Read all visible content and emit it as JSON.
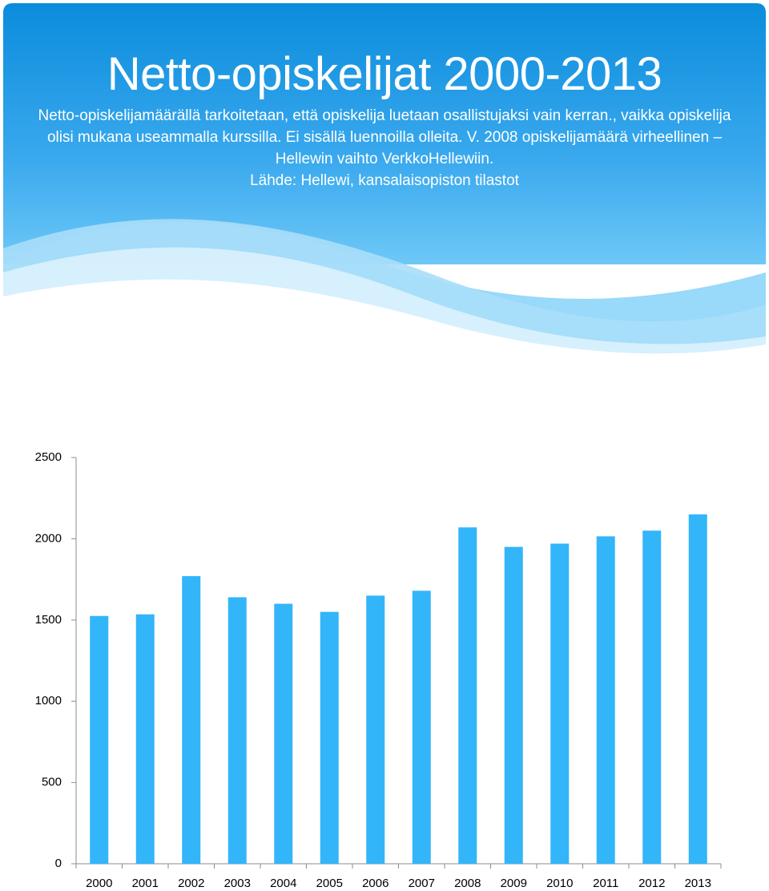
{
  "chart_data": {
    "type": "bar",
    "title": "Netto-opiskelijat 2000-2013",
    "subtitle": "Netto-opiskelijamäärällä tarkoitetaan, että opiskelija luetaan osallistujaksi vain kerran., vaikka opiskelija olisi mukana useammalla kurssilla. Ei sisällä luennoilla olleita. V. 2008 opiskelijamäärä virheellinen – Hellewin vaihto VerkkoHellewiin.",
    "source": "Lähde: Hellewi, kansalaisopiston tilastot",
    "categories": [
      "2000",
      "2001",
      "2002",
      "2003",
      "2004",
      "2005",
      "2006",
      "2007",
      "2008",
      "2009",
      "2010",
      "2011",
      "2012",
      "2013"
    ],
    "values": [
      1525,
      1535,
      1770,
      1640,
      1600,
      1550,
      1650,
      1680,
      2070,
      1950,
      1970,
      2015,
      2050,
      2150
    ],
    "color": "#33b5f9",
    "ylim": [
      0,
      2500
    ],
    "yticks": [
      0,
      500,
      1000,
      1500,
      2000,
      2500
    ],
    "grid": false
  }
}
